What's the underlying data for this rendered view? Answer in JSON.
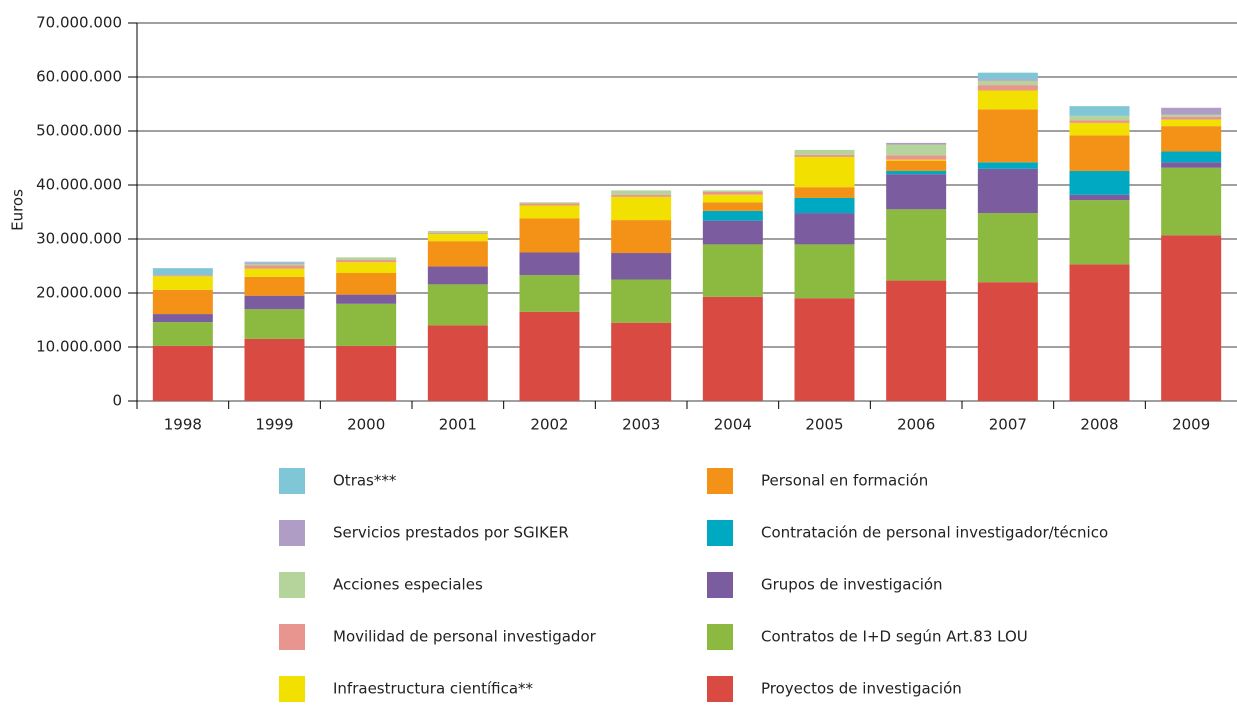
{
  "chart_data": {
    "type": "stacked_bar",
    "y_label": "Euros",
    "categories": [
      "1998",
      "1999",
      "2000",
      "2001",
      "2002",
      "2003",
      "2004",
      "2005",
      "2006",
      "2007",
      "2008",
      "2009"
    ],
    "ylim": [
      0,
      70000000
    ],
    "yticks": [
      0,
      {
        "value": 10000000,
        "label": "10.000.000"
      },
      {
        "value": 20000000,
        "label": "20.000.000"
      },
      {
        "value": 30000000,
        "label": "30.000.000"
      },
      {
        "value": 40000000,
        "label": "40.000.000"
      },
      {
        "value": 50000000,
        "label": "50.000.000"
      },
      {
        "value": 60000000,
        "label": "60.000.000"
      },
      {
        "value": 70000000,
        "label": "70.000.000"
      }
    ],
    "grid": true,
    "series": [
      {
        "name": "Proyectos de investigación",
        "color": "#d94a43",
        "values": [
          10200000,
          11500000,
          10200000,
          14000000,
          16500000,
          14500000,
          19300000,
          19000000,
          22300000,
          22000000,
          25300000,
          30700000
        ]
      },
      {
        "name": "Contratos de I+D según Art.83 LOU",
        "color": "#8cb940",
        "values": [
          4400000,
          5500000,
          7800000,
          7600000,
          6800000,
          8000000,
          9700000,
          10000000,
          13200000,
          12800000,
          11900000,
          12500000
        ]
      },
      {
        "name": "Grupos de investigación",
        "color": "#7b5c9e",
        "values": [
          1500000,
          2500000,
          1700000,
          3300000,
          4200000,
          4900000,
          4400000,
          5800000,
          6500000,
          8200000,
          1000000,
          1000000
        ]
      },
      {
        "name": "Contratación de personal investigador/técnico",
        "color": "#00a9c2",
        "values": [
          0,
          0,
          0,
          0,
          0,
          0,
          1800000,
          2800000,
          600000,
          1200000,
          4400000,
          2000000
        ]
      },
      {
        "name": "Personal en formación",
        "color": "#f39216",
        "values": [
          4500000,
          3500000,
          4000000,
          4700000,
          6300000,
          6100000,
          1600000,
          2000000,
          1900000,
          9800000,
          6600000,
          4700000
        ]
      },
      {
        "name": "Infraestructura científica**",
        "color": "#f2e100",
        "values": [
          2500000,
          1500000,
          2000000,
          1300000,
          2400000,
          4300000,
          1400000,
          5600000,
          200000,
          3500000,
          2300000,
          1200000
        ]
      },
      {
        "name": "Movilidad de personal investigador",
        "color": "#e9958f",
        "values": [
          200000,
          600000,
          400000,
          200000,
          400000,
          400000,
          500000,
          400000,
          800000,
          1000000,
          500000,
          500000
        ]
      },
      {
        "name": "Acciones especiales",
        "color": "#b5d49b",
        "values": [
          0,
          300000,
          500000,
          400000,
          200000,
          800000,
          300000,
          900000,
          2000000,
          800000,
          800000,
          400000
        ]
      },
      {
        "name": "Servicios prestados por SGIKER",
        "color": "#b09dc5",
        "values": [
          0,
          200000,
          0,
          0,
          0,
          0,
          0,
          0,
          300000,
          300000,
          0,
          1300000
        ]
      },
      {
        "name": "Otras***",
        "color": "#7fc6d7",
        "values": [
          1300000,
          200000,
          0,
          0,
          0,
          0,
          0,
          0,
          0,
          1200000,
          1800000,
          0
        ]
      }
    ]
  }
}
